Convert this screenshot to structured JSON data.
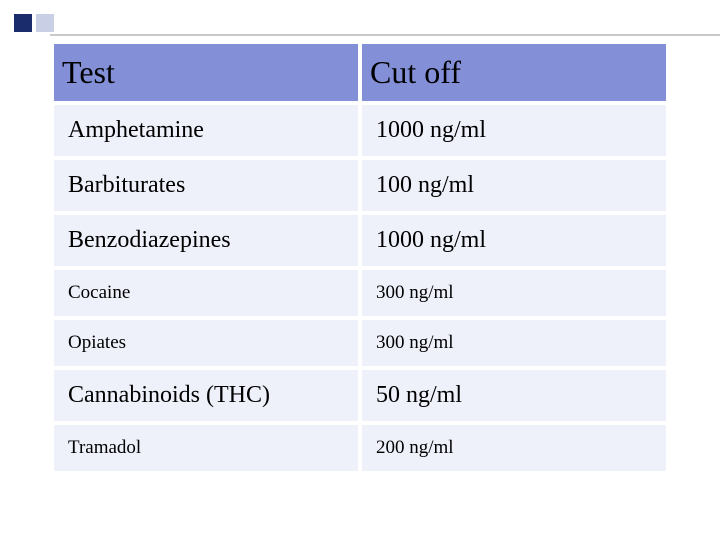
{
  "accent": {
    "dark_color": "#1b2c6d",
    "light_color": "#c9d0e6",
    "line_color": "#c9c9c9"
  },
  "table": {
    "header_bg": "#8390d8",
    "row_bg": "#eef0fa",
    "columns": [
      "Test",
      "Cut off"
    ],
    "header_fontsize": 32,
    "rows": [
      {
        "test": "Amphetamine",
        "cutoff": "1000 ng/ml",
        "fontsize": 24
      },
      {
        "test": "Barbiturates",
        "cutoff": "100 ng/ml",
        "fontsize": 24
      },
      {
        "test": "Benzodiazepines",
        "cutoff": "1000 ng/ml",
        "fontsize": 24
      },
      {
        "test": "Cocaine",
        "cutoff": "300 ng/ml",
        "fontsize": 19
      },
      {
        "test": "Opiates",
        "cutoff": "300 ng/ml",
        "fontsize": 19
      },
      {
        "test": "Cannabinoids (THC)",
        "cutoff": "50 ng/ml",
        "fontsize": 24
      },
      {
        "test": "Tramadol",
        "cutoff": "200 ng/ml",
        "fontsize": 19
      }
    ]
  }
}
